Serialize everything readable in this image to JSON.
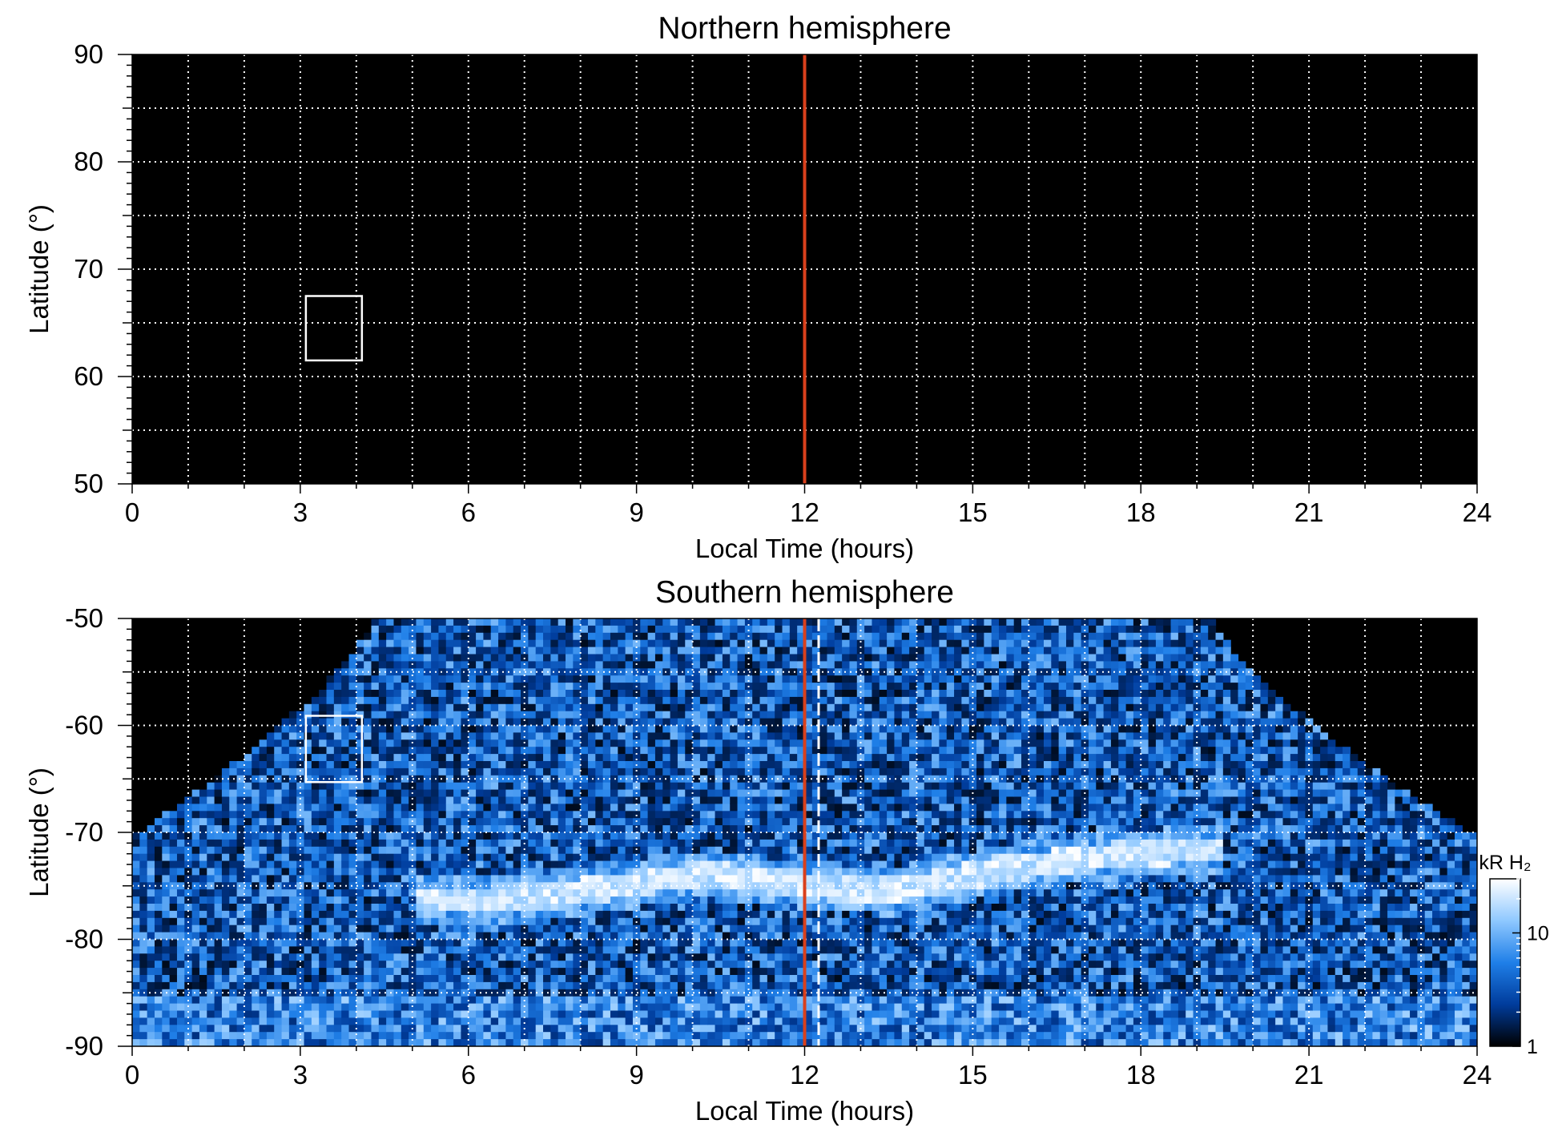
{
  "chart_data": [
    {
      "type": "heatmap",
      "title": "Northern hemisphere",
      "xlabel": "Local Time (hours)",
      "ylabel": "Latitude (°)",
      "xlim": [
        0,
        24
      ],
      "ylim": [
        50,
        90
      ],
      "x_ticks": [
        "0",
        "3",
        "6",
        "9",
        "12",
        "15",
        "18",
        "21",
        "24"
      ],
      "y_ticks": [
        "90",
        "80",
        "70",
        "60",
        "50"
      ],
      "grid": true,
      "background": "#000000",
      "coverage": "none",
      "noon_line": {
        "x": 12,
        "color": "#d9401c"
      },
      "box": {
        "x": [
          3.1,
          4.1
        ],
        "y": [
          61.5,
          67.5
        ],
        "color": "#ffffff"
      }
    },
    {
      "type": "heatmap",
      "title": "Southern hemisphere",
      "xlabel": "Local Time (hours)",
      "ylabel": "Latitude (°)",
      "xlim": [
        0,
        24
      ],
      "ylim": [
        -90,
        -50
      ],
      "x_ticks": [
        "0",
        "3",
        "6",
        "9",
        "12",
        "15",
        "18",
        "21",
        "24"
      ],
      "y_ticks": [
        "-50",
        "-60",
        "-70",
        "-80",
        "-90"
      ],
      "grid": true,
      "background": "#000000",
      "coverage": {
        "lt_min": 4.3,
        "lt_max": 19.3,
        "lat_at_edges": -70.5
      },
      "auroral_oval": {
        "lt": [
          5.5,
          6.5,
          7.5,
          8.5,
          9.5,
          10.5,
          11.5,
          12.5,
          13.5,
          14.5,
          15.5,
          16.5,
          17.5,
          18.5
        ],
        "lat": [
          -76.3,
          -76.4,
          -75.9,
          -75.2,
          -74.3,
          -74.0,
          -74.6,
          -75.2,
          -75.5,
          -74.6,
          -73.4,
          -72.8,
          -72.2,
          -71.8
        ]
      },
      "noon_line": {
        "x": 12,
        "color": "#d9401c"
      },
      "dashed_line": {
        "x": 12.25,
        "color": "#ffffff"
      },
      "box": {
        "x": [
          3.1,
          4.1
        ],
        "y": [
          -65.3,
          -59.1
        ],
        "color": "#ffffff"
      },
      "colorbar": {
        "label": "kR H₂",
        "tick_labels": [
          "10",
          "1"
        ],
        "range": [
          1,
          30
        ],
        "scale": "log",
        "colors": [
          "#000000",
          "#003c9c",
          "#1f7fe8",
          "#8fc8ff",
          "#ffffff"
        ]
      }
    }
  ]
}
